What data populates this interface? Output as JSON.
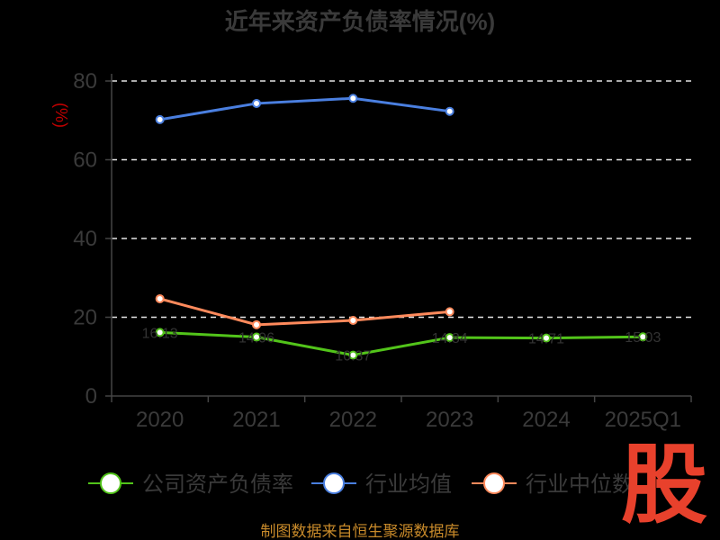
{
  "title": "近年来资产负债率情况(%)",
  "unit_label": "(%)",
  "source": "制图数据来自恒生聚源数据库",
  "watermark": "股",
  "colors": {
    "company": "#52c41a",
    "industry_avg": "#4a7fe0",
    "industry_median": "#ff8a5c"
  },
  "chart_data": {
    "type": "line",
    "title": "近年来资产负债率情况(%)",
    "xlabel": "",
    "ylabel": "(%)",
    "categories": [
      "2020",
      "2021",
      "2022",
      "2023",
      "2024",
      "2025Q1"
    ],
    "yticks": [
      "0",
      "20",
      "40",
      "60",
      "80"
    ],
    "ylim": [
      0,
      80
    ],
    "grid": true,
    "legend_position": "bottom",
    "series": [
      {
        "name": "公司资产负债率",
        "key": "company",
        "values": [
          16.13,
          14.96,
          10.37,
          14.84,
          14.71,
          15.03
        ],
        "labels": [
          "16.13",
          "14.96",
          "10.37",
          "14.84",
          "14.71",
          "15.03"
        ]
      },
      {
        "name": "行业均值",
        "key": "industry_avg",
        "values": [
          70.2,
          74.3,
          75.6,
          72.3,
          null,
          null
        ],
        "labels": []
      },
      {
        "name": "行业中位数",
        "key": "industry_median",
        "values": [
          24.7,
          18.1,
          19.2,
          21.4,
          null,
          null
        ],
        "labels": []
      }
    ]
  }
}
